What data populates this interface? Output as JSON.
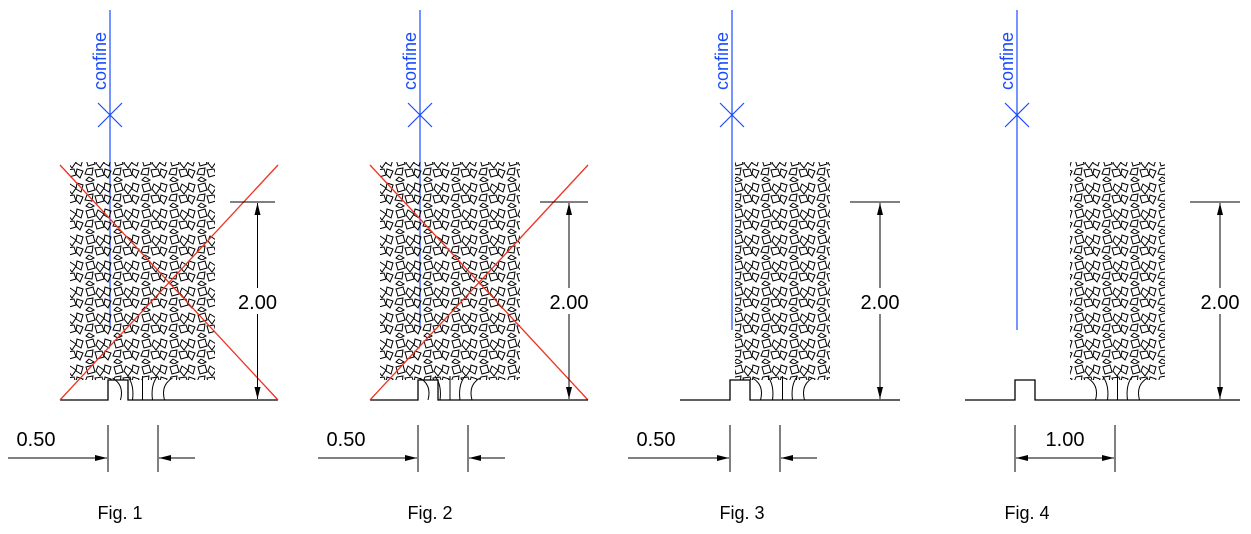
{
  "figures": [
    {
      "confine": "confine",
      "height": "2.00",
      "spacing": "0.50",
      "label": "Fig. 1"
    },
    {
      "confine": "confine",
      "height": "2.00",
      "spacing": "0.50",
      "label": "Fig. 2"
    },
    {
      "confine": "confine",
      "height": "2.00",
      "spacing": "0.50",
      "label": "Fig. 3"
    },
    {
      "confine": "confine",
      "height": "2.00",
      "spacing": "1.00",
      "label": "Fig. 4"
    }
  ]
}
